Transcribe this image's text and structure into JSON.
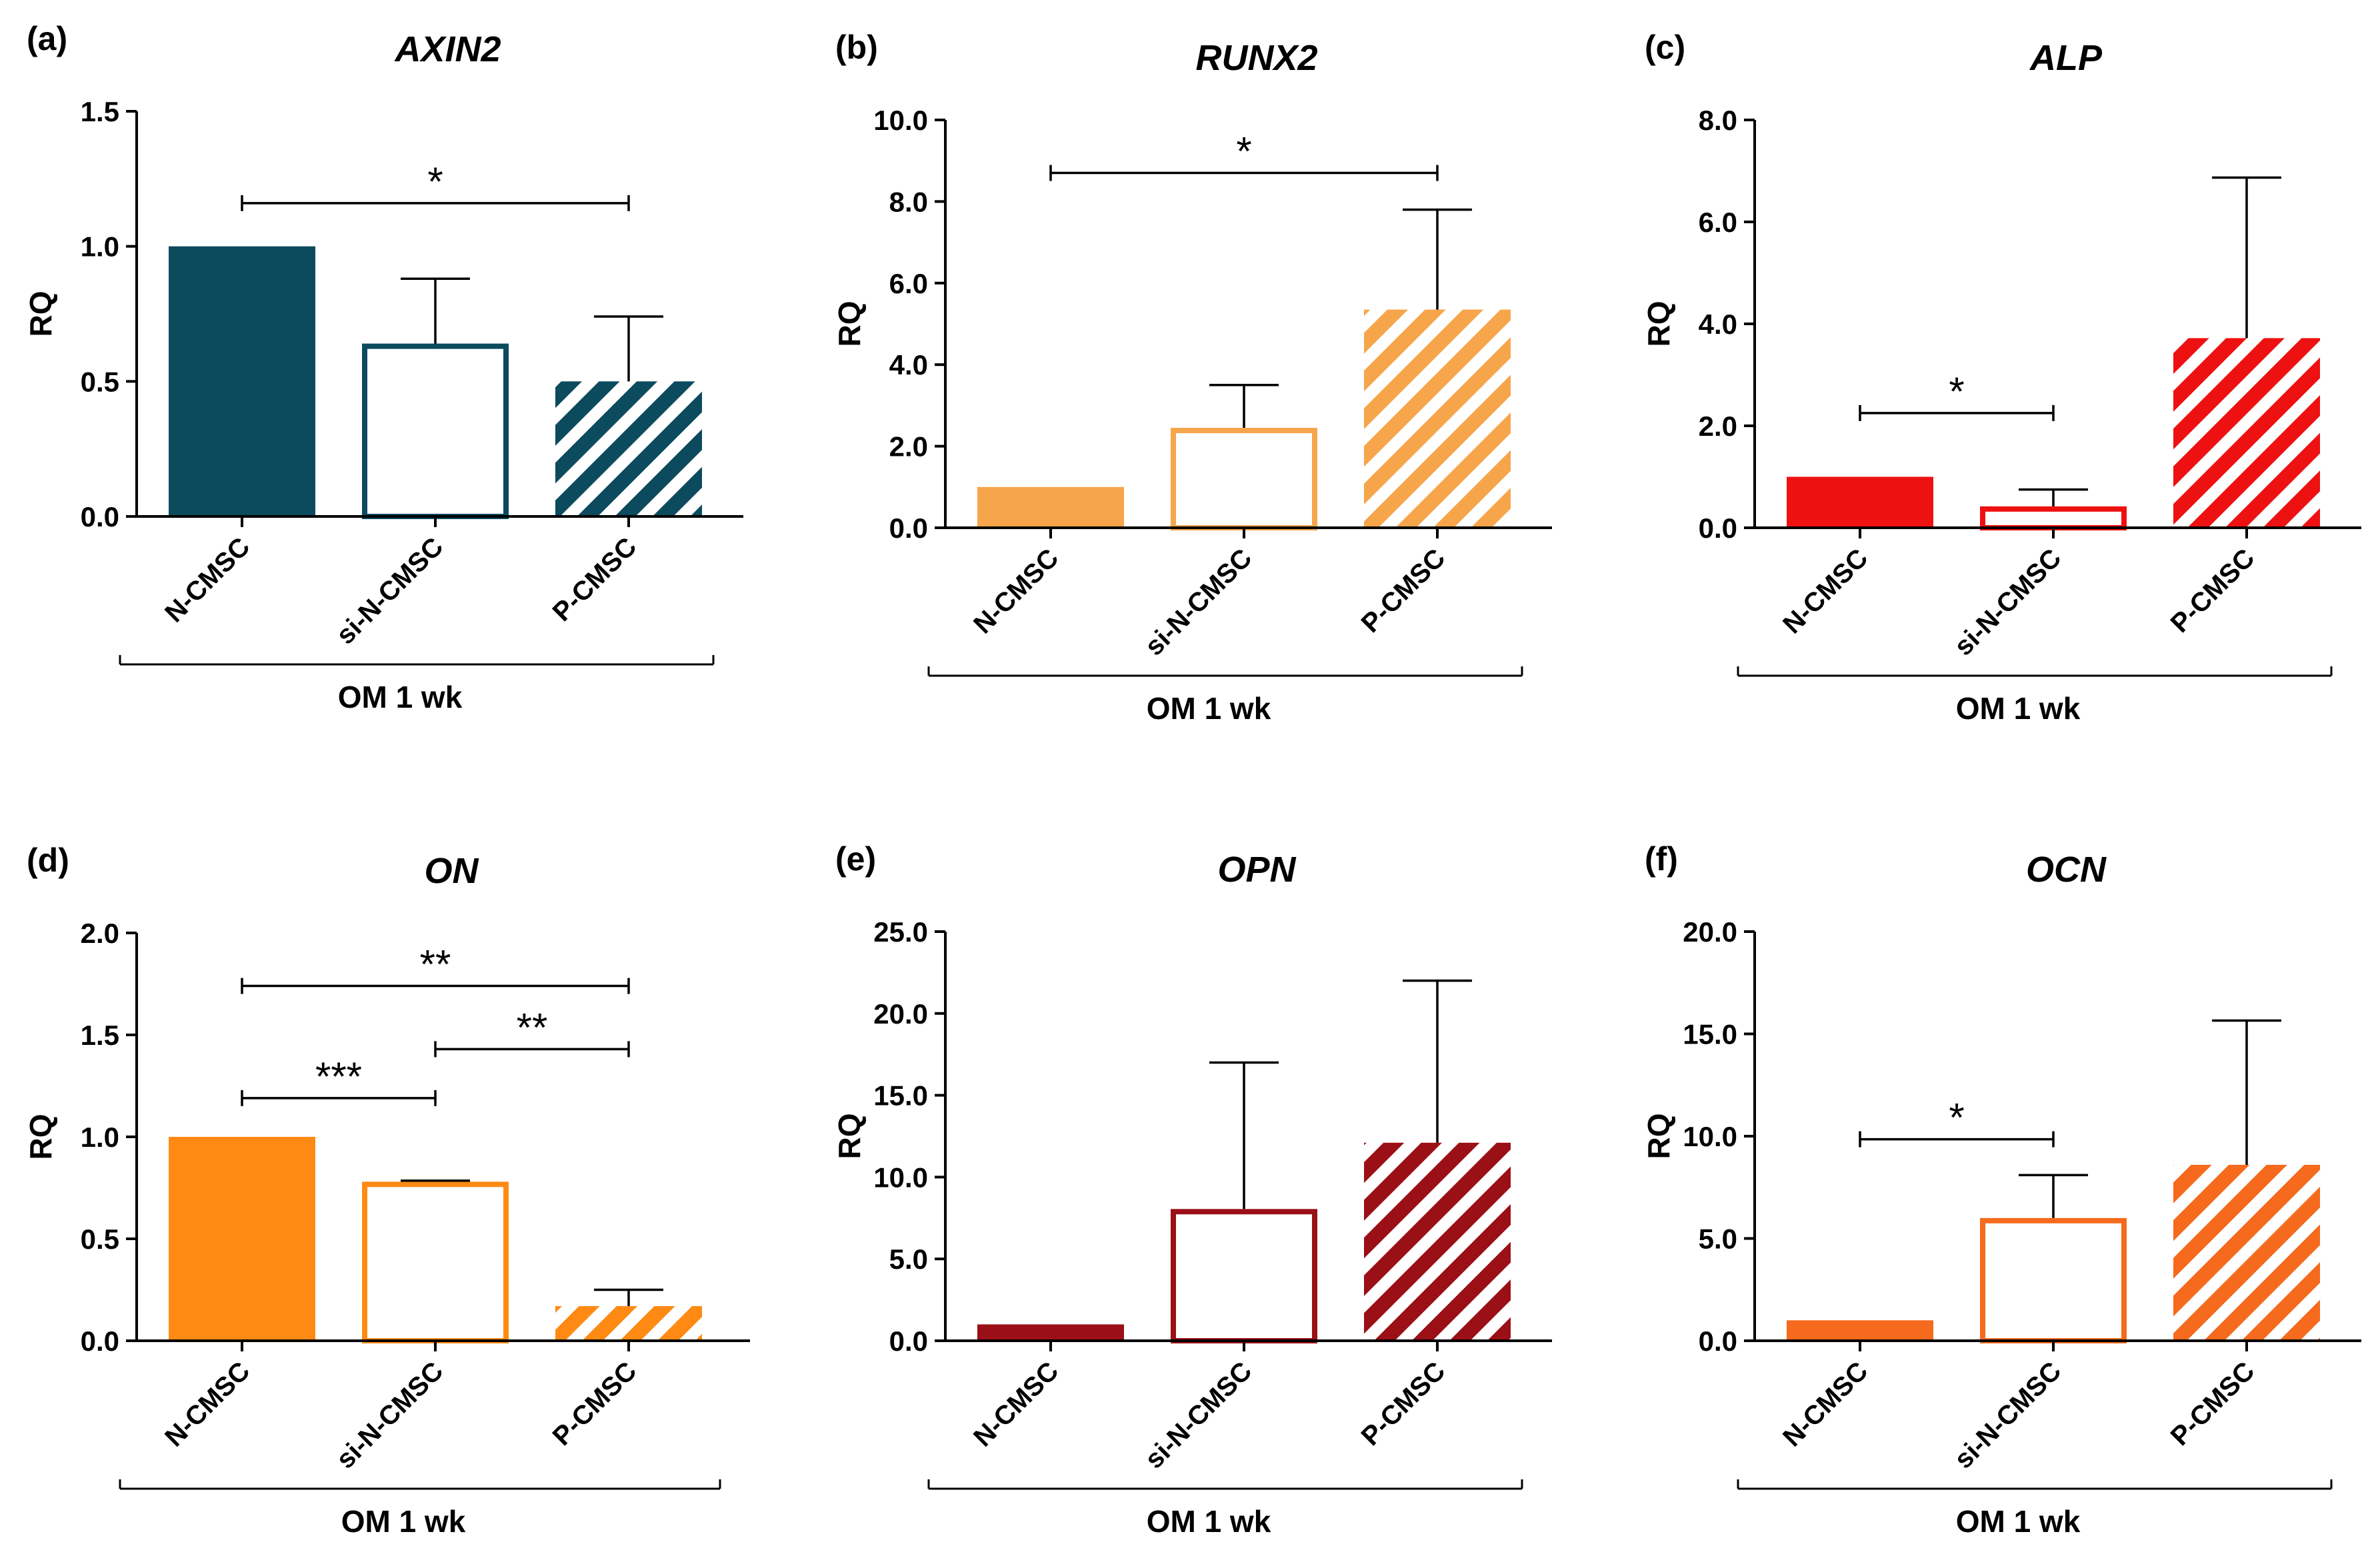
{
  "figure": {
    "group_label": "OM 1 wk",
    "y_axis_label": "RQ",
    "categories": [
      "N-CMSC",
      "si-N-CMSC",
      "P-CMSC"
    ]
  },
  "chart_data": [
    {
      "type": "bar",
      "panel": "(a)",
      "title": "AXIN2",
      "ylabel": "RQ",
      "xlabel": "OM 1 wk",
      "categories": [
        "N-CMSC",
        "si-N-CMSC",
        "P-CMSC"
      ],
      "values": [
        1.0,
        0.64,
        0.5
      ],
      "errors": [
        0,
        0.24,
        0.24
      ],
      "ylim": [
        0,
        1.5
      ],
      "ticks": [
        0.0,
        0.5,
        1.0,
        1.5
      ],
      "tick_labels": [
        "0.0",
        "0.5",
        "1.0",
        "1.5"
      ],
      "color": "#0c4a5e",
      "significance": [
        {
          "from": 0,
          "to": 2,
          "label": "*",
          "y": 1.16
        }
      ]
    },
    {
      "type": "bar",
      "panel": "(b)",
      "title": "RUNX2",
      "ylabel": "RQ",
      "xlabel": "OM 1 wk",
      "categories": [
        "N-CMSC",
        "si-N-CMSC",
        "P-CMSC"
      ],
      "values": [
        1.0,
        2.45,
        5.35
      ],
      "errors": [
        0,
        1.05,
        2.45
      ],
      "ylim": [
        0,
        10
      ],
      "ticks": [
        0,
        2,
        4,
        6,
        8,
        10
      ],
      "tick_labels": [
        "0.0",
        "2.0",
        "4.0",
        "6.0",
        "8.0",
        "10.0"
      ],
      "color": "#f7a54b",
      "significance": [
        {
          "from": 0,
          "to": 2,
          "label": "*",
          "y": 8.7
        }
      ]
    },
    {
      "type": "bar",
      "panel": "(c)",
      "title": "ALP",
      "ylabel": "RQ",
      "xlabel": "OM 1 wk",
      "categories": [
        "N-CMSC",
        "si-N-CMSC",
        "P-CMSC"
      ],
      "values": [
        1.0,
        0.42,
        3.72
      ],
      "errors": [
        0,
        0.33,
        3.15
      ],
      "ylim": [
        0,
        8
      ],
      "ticks": [
        0,
        2,
        4,
        6,
        8
      ],
      "tick_labels": [
        "0.0",
        "2.0",
        "4.0",
        "6.0",
        "8.0"
      ],
      "color": "#ee1111",
      "significance": [
        {
          "from": 0,
          "to": 1,
          "label": "*",
          "y": 2.25
        }
      ]
    },
    {
      "type": "bar",
      "panel": "(d)",
      "title": "ON",
      "ylabel": "RQ",
      "xlabel": "OM 1 wk",
      "categories": [
        "N-CMSC",
        "si-N-CMSC",
        "P-CMSC"
      ],
      "values": [
        1.0,
        0.78,
        0.17
      ],
      "errors": [
        0,
        0.005,
        0.08
      ],
      "ylim": [
        0,
        2
      ],
      "ticks": [
        0,
        0.5,
        1.0,
        1.5,
        2.0
      ],
      "tick_labels": [
        "0.0",
        "0.5",
        "1.0",
        "1.5",
        "2.0"
      ],
      "color": "#ff8a13",
      "significance": [
        {
          "from": 0,
          "to": 2,
          "label": "**",
          "y": 1.74
        },
        {
          "from": 1,
          "to": 2,
          "label": "**",
          "y": 1.43
        },
        {
          "from": 0,
          "to": 1,
          "label": "***",
          "y": 1.19
        }
      ]
    },
    {
      "type": "bar",
      "panel": "(e)",
      "title": "OPN",
      "ylabel": "RQ",
      "xlabel": "OM 1 wk",
      "categories": [
        "N-CMSC",
        "si-N-CMSC",
        "P-CMSC"
      ],
      "values": [
        1.0,
        8.05,
        12.1
      ],
      "errors": [
        0,
        8.95,
        9.9
      ],
      "ylim": [
        0,
        25
      ],
      "ticks": [
        0,
        5,
        10,
        15,
        20,
        25
      ],
      "tick_labels": [
        "0.0",
        "5.0",
        "10.0",
        "15.0",
        "20.0",
        "25.0"
      ],
      "color": "#9b0f16",
      "significance": []
    },
    {
      "type": "bar",
      "panel": "(f)",
      "title": "OCN",
      "ylabel": "RQ",
      "xlabel": "OM 1 wk",
      "categories": [
        "N-CMSC",
        "si-N-CMSC",
        "P-CMSC"
      ],
      "values": [
        1.0,
        6.0,
        8.6
      ],
      "errors": [
        0,
        2.1,
        7.05
      ],
      "ylim": [
        0,
        20
      ],
      "ticks": [
        0,
        5,
        10,
        15,
        20
      ],
      "tick_labels": [
        "0.0",
        "5.0",
        "10.0",
        "15.0",
        "20.0"
      ],
      "color": "#f56a1c",
      "significance": [
        {
          "from": 0,
          "to": 1,
          "label": "*",
          "y": 9.85
        }
      ]
    }
  ]
}
